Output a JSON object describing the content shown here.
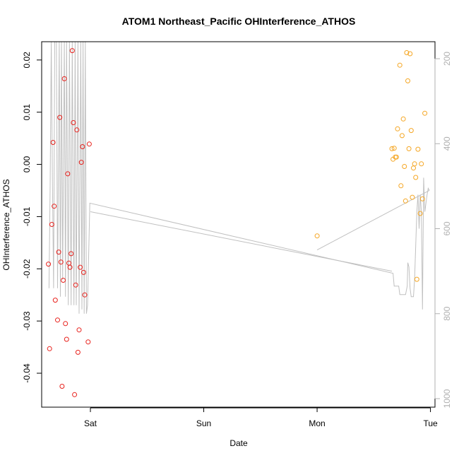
{
  "chart_data": {
    "type": "scatter",
    "title": "ATOM1 Northeast_Pacific OHInterference_ATHOS",
    "xlabel": "Date",
    "ylabel": "OHInterference_ATHOS",
    "x_ticks": [
      {
        "label": "Sat",
        "value": 1.0
      },
      {
        "label": "Sun",
        "value": 2.0
      },
      {
        "label": "Mon",
        "value": 3.0
      },
      {
        "label": "Tue",
        "value": 4.0
      }
    ],
    "xlim": [
      0.57,
      4.04
    ],
    "ylim": [
      -0.0465,
      0.0235
    ],
    "y_ticks": [
      -0.04,
      -0.03,
      -0.02,
      -0.01,
      0.0,
      0.01,
      0.02
    ],
    "y_tick_labels": [
      "-0.04",
      "-0.03",
      "-0.02",
      "-0.01",
      "0.00",
      "0.01",
      "0.02"
    ],
    "right_axis": {
      "ylim": [
        1020,
        160
      ],
      "ticks": [
        200,
        400,
        600,
        800,
        1000
      ],
      "tick_labels": [
        "200",
        "400",
        "600",
        "800",
        "1000"
      ],
      "color": "#b0b0b0"
    },
    "grid": false,
    "series": [
      {
        "color": "#e8211c",
        "marker": "open-circle",
        "points": [
          {
            "x": 0.63,
            "y": -0.0191
          },
          {
            "x": 0.64,
            "y": -0.0353
          },
          {
            "x": 0.66,
            "y": -0.0115
          },
          {
            "x": 0.67,
            "y": 0.0042
          },
          {
            "x": 0.68,
            "y": -0.008
          },
          {
            "x": 0.69,
            "y": -0.026
          },
          {
            "x": 0.71,
            "y": -0.0298
          },
          {
            "x": 0.72,
            "y": -0.0168
          },
          {
            "x": 0.73,
            "y": 0.009
          },
          {
            "x": 0.74,
            "y": -0.0187
          },
          {
            "x": 0.75,
            "y": -0.0425
          },
          {
            "x": 0.76,
            "y": -0.0222
          },
          {
            "x": 0.77,
            "y": 0.0164
          },
          {
            "x": 0.78,
            "y": -0.0305
          },
          {
            "x": 0.79,
            "y": -0.0335
          },
          {
            "x": 0.8,
            "y": -0.0018
          },
          {
            "x": 0.81,
            "y": -0.0189
          },
          {
            "x": 0.82,
            "y": -0.0197
          },
          {
            "x": 0.83,
            "y": -0.0171
          },
          {
            "x": 0.84,
            "y": 0.0218
          },
          {
            "x": 0.85,
            "y": 0.008
          },
          {
            "x": 0.86,
            "y": -0.0441
          },
          {
            "x": 0.87,
            "y": -0.0231
          },
          {
            "x": 0.88,
            "y": 0.0066
          },
          {
            "x": 0.89,
            "y": -0.036
          },
          {
            "x": 0.9,
            "y": -0.0317
          },
          {
            "x": 0.91,
            "y": -0.0197
          },
          {
            "x": 0.92,
            "y": 0.0004
          },
          {
            "x": 0.93,
            "y": 0.0034
          },
          {
            "x": 0.94,
            "y": -0.0207
          },
          {
            "x": 0.95,
            "y": -0.025
          },
          {
            "x": 0.98,
            "y": -0.034
          },
          {
            "x": 0.99,
            "y": 0.0039
          }
        ]
      },
      {
        "color": "#f5a623",
        "marker": "open-circle",
        "points": [
          {
            "x": 3.0,
            "y": -0.0137
          },
          {
            "x": 3.66,
            "y": 0.003
          },
          {
            "x": 3.67,
            "y": 0.001
          },
          {
            "x": 3.68,
            "y": 0.0031
          },
          {
            "x": 3.69,
            "y": 0.0014
          },
          {
            "x": 3.7,
            "y": 0.0014
          },
          {
            "x": 3.71,
            "y": 0.0068
          },
          {
            "x": 3.73,
            "y": 0.019
          },
          {
            "x": 3.74,
            "y": -0.0041
          },
          {
            "x": 3.75,
            "y": 0.0055
          },
          {
            "x": 3.76,
            "y": 0.0087
          },
          {
            "x": 3.77,
            "y": -0.0004
          },
          {
            "x": 3.78,
            "y": -0.007
          },
          {
            "x": 3.79,
            "y": 0.0214
          },
          {
            "x": 3.8,
            "y": 0.016
          },
          {
            "x": 3.81,
            "y": 0.003
          },
          {
            "x": 3.82,
            "y": 0.0212
          },
          {
            "x": 3.83,
            "y": 0.0065
          },
          {
            "x": 3.84,
            "y": -0.0063
          },
          {
            "x": 3.85,
            "y": -0.0007
          },
          {
            "x": 3.86,
            "y": 0.0001
          },
          {
            "x": 3.87,
            "y": -0.0025
          },
          {
            "x": 3.88,
            "y": -0.022
          },
          {
            "x": 3.89,
            "y": 0.0029
          },
          {
            "x": 3.91,
            "y": -0.0094
          },
          {
            "x": 3.92,
            "y": 0.0001
          },
          {
            "x": 3.93,
            "y": -0.0066
          },
          {
            "x": 3.95,
            "y": 0.0098
          }
        ]
      }
    ],
    "overlay_line": {
      "color": "#c0c0c0",
      "axis": "right",
      "points": [
        {
          "x": 0.635,
          "y": 740
        },
        {
          "x": 0.645,
          "y": 500
        },
        {
          "x": 0.655,
          "y": 160
        },
        {
          "x": 0.665,
          "y": 480
        },
        {
          "x": 0.675,
          "y": 740
        },
        {
          "x": 0.685,
          "y": 160
        },
        {
          "x": 0.7,
          "y": 160
        },
        {
          "x": 0.71,
          "y": 740
        },
        {
          "x": 0.725,
          "y": 160
        },
        {
          "x": 0.735,
          "y": 760
        },
        {
          "x": 0.745,
          "y": 160
        },
        {
          "x": 0.755,
          "y": 720
        },
        {
          "x": 0.77,
          "y": 160
        },
        {
          "x": 0.78,
          "y": 760
        },
        {
          "x": 0.79,
          "y": 160
        },
        {
          "x": 0.805,
          "y": 780
        },
        {
          "x": 0.815,
          "y": 160
        },
        {
          "x": 0.83,
          "y": 780
        },
        {
          "x": 0.84,
          "y": 160
        },
        {
          "x": 0.855,
          "y": 780
        },
        {
          "x": 0.865,
          "y": 160
        },
        {
          "x": 0.875,
          "y": 780
        },
        {
          "x": 0.89,
          "y": 160
        },
        {
          "x": 0.9,
          "y": 800
        },
        {
          "x": 0.915,
          "y": 160
        },
        {
          "x": 0.925,
          "y": 790
        },
        {
          "x": 0.935,
          "y": 160
        },
        {
          "x": 0.945,
          "y": 800
        },
        {
          "x": 0.955,
          "y": 160
        },
        {
          "x": 0.965,
          "y": 800
        },
        {
          "x": 0.975,
          "y": 780
        },
        {
          "x": 0.98,
          "y": 720
        },
        {
          "x": 0.995,
          "y": 540
        },
        {
          "x": 3.67,
          "y": 705
        },
        {
          "x": 3.68,
          "y": 735
        },
        {
          "x": 3.72,
          "y": 735
        },
        {
          "x": 3.73,
          "y": 755
        },
        {
          "x": 3.78,
          "y": 755
        },
        {
          "x": 3.795,
          "y": 735
        },
        {
          "x": 3.8,
          "y": 680
        },
        {
          "x": 3.81,
          "y": 690
        },
        {
          "x": 3.82,
          "y": 740
        },
        {
          "x": 3.83,
          "y": 760
        },
        {
          "x": 3.85,
          "y": 760
        },
        {
          "x": 3.86,
          "y": 720
        },
        {
          "x": 3.87,
          "y": 640
        },
        {
          "x": 3.88,
          "y": 560
        },
        {
          "x": 3.89,
          "y": 520
        },
        {
          "x": 3.9,
          "y": 600
        },
        {
          "x": 3.91,
          "y": 520
        },
        {
          "x": 3.92,
          "y": 560
        },
        {
          "x": 3.93,
          "y": 790
        },
        {
          "x": 3.94,
          "y": 480
        },
        {
          "x": 3.95,
          "y": 560
        },
        {
          "x": 3.96,
          "y": 540
        },
        {
          "x": 3.97,
          "y": 520
        },
        {
          "x": 3.98,
          "y": 505
        },
        {
          "x": 3.99,
          "y": 510
        }
      ],
      "extra_segments": [
        [
          {
            "x": 1.0,
            "y": 560
          },
          {
            "x": 3.66,
            "y": 700
          }
        ],
        [
          {
            "x": 3.0,
            "y": 650
          },
          {
            "x": 3.99,
            "y": 510
          }
        ]
      ]
    }
  }
}
